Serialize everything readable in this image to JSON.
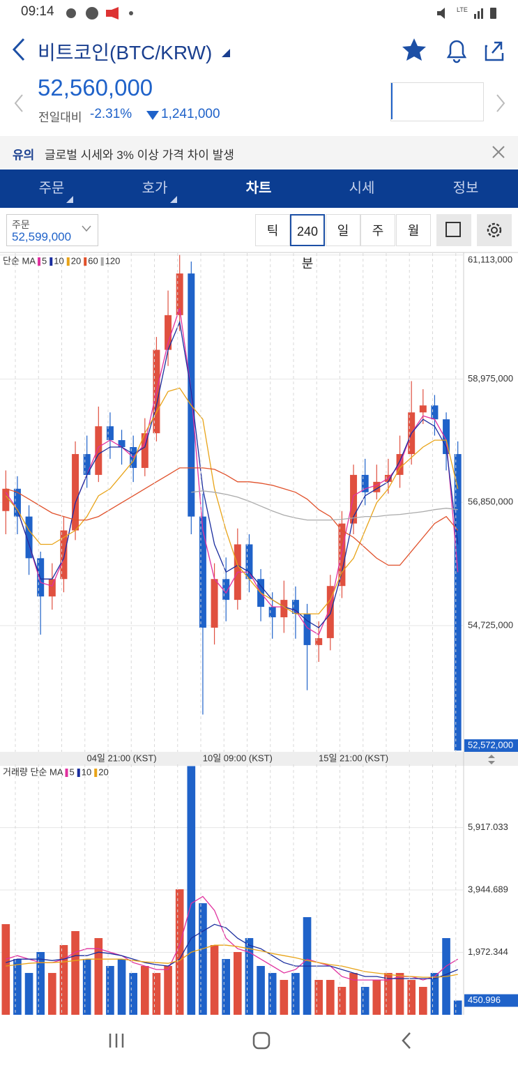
{
  "status_bar": {
    "time": "09:14"
  },
  "header": {
    "title": "비트코인(BTC/KRW)"
  },
  "price": {
    "current": "52,560,000",
    "change_label": "전일대비",
    "change_pct": "-2.31%",
    "change_abs": "1,241,000"
  },
  "notice": {
    "tag": "유의",
    "text": "글로벌 시세와 3% 이상 가격 차이 발생"
  },
  "tabs": [
    "주문",
    "호가",
    "차트",
    "시세",
    "정보"
  ],
  "active_tab": 2,
  "toolbar": {
    "order_label": "주문",
    "order_price": "52,599,000",
    "periods": [
      "틱",
      "240분",
      "일",
      "주",
      "월"
    ],
    "active_period": 1
  },
  "chart_data": [
    {
      "type": "candlestick",
      "legend_title": "단순 MA",
      "up_color": "#e0503f",
      "down_color": "#1f62c9",
      "categories": [
        null,
        null,
        null,
        null,
        null,
        null,
        null,
        null,
        null,
        null,
        "04일 21:00 (KST)",
        null,
        null,
        null,
        null,
        null,
        null,
        null,
        null,
        null,
        "10일 09:00 (KST)",
        null,
        null,
        null,
        null,
        null,
        null,
        null,
        null,
        null,
        "15일 21:00 (KST)",
        null,
        null,
        null,
        null,
        null,
        null,
        null,
        null,
        null
      ],
      "open": [
        56700000,
        57084000,
        56605000,
        55887000,
        55228000,
        55528000,
        56366000,
        57682000,
        57323000,
        58161000,
        57922000,
        57802000,
        57443000,
        58041000,
        59478000,
        60076000,
        60794000,
        56605000,
        54690000,
        55528000,
        55169000,
        56126000,
        55528000,
        55049000,
        54869000,
        55169000,
        54929000,
        54390000,
        54510000,
        55408000,
        56485000,
        57323000,
        57024000,
        57203000,
        57323000,
        57682000,
        58400000,
        58520000,
        58281000,
        57682000
      ],
      "high": [
        57400000,
        57300000,
        56800000,
        56000000,
        55800000,
        56600000,
        57900000,
        58000000,
        58500000,
        58400000,
        58100000,
        58000000,
        58300000,
        59700000,
        60500000,
        61113000,
        61000000,
        57000000,
        55800000,
        55900000,
        56400000,
        56300000,
        55700000,
        55300000,
        55500000,
        55400000,
        55100000,
        54800000,
        55600000,
        56700000,
        57500000,
        57600000,
        57500000,
        57600000,
        58000000,
        58939000,
        58800000,
        58700000,
        58400000,
        57900000
      ],
      "low": [
        56300000,
        56300000,
        55600000,
        54570000,
        55000000,
        55300000,
        56200000,
        57100000,
        57200000,
        57600000,
        57500000,
        57200000,
        57300000,
        57900000,
        59200000,
        59800000,
        56300000,
        53193000,
        54400000,
        54800000,
        55000000,
        55300000,
        54800000,
        54500000,
        54600000,
        54500000,
        53612000,
        54100000,
        54300000,
        55200000,
        56300000,
        56800000,
        56900000,
        57000000,
        57100000,
        57500000,
        58200000,
        58000000,
        57400000,
        52572000
      ],
      "close": [
        57084000,
        56605000,
        55887000,
        55228000,
        55528000,
        56366000,
        57682000,
        57323000,
        58161000,
        57922000,
        57802000,
        57443000,
        58041000,
        59478000,
        60076000,
        60794000,
        56605000,
        54690000,
        55528000,
        55169000,
        56126000,
        55528000,
        55049000,
        54869000,
        55169000,
        54929000,
        54390000,
        54510000,
        55408000,
        56485000,
        57323000,
        57024000,
        57203000,
        57323000,
        57682000,
        58400000,
        58520000,
        58281000,
        57682000,
        52572000
      ],
      "series": [
        {
          "name": "5",
          "color": "#e0309e",
          "values": [
            57024000,
            56725000,
            56126000,
            55468000,
            55408000,
            55887000,
            56845000,
            57323000,
            57802000,
            57922000,
            57802000,
            57623000,
            57862000,
            58760000,
            59598000,
            60196000,
            58760000,
            56366000,
            55528000,
            55288000,
            55648000,
            55648000,
            55288000,
            55049000,
            55049000,
            54989000,
            54690000,
            54570000,
            55049000,
            56007000,
            56964000,
            57084000,
            57144000,
            57264000,
            57503000,
            58042000,
            58341000,
            58281000,
            57922000,
            55648000
          ]
        },
        {
          "name": "10",
          "color": "#1a2d9e",
          "values": [
            56964000,
            56725000,
            56126000,
            55528000,
            55528000,
            55887000,
            56845000,
            57323000,
            57682000,
            57802000,
            57802000,
            57682000,
            57802000,
            58520000,
            59478000,
            59957000,
            58760000,
            57084000,
            56126000,
            55648000,
            55767000,
            55648000,
            55408000,
            55169000,
            55049000,
            54989000,
            54810000,
            54690000,
            54929000,
            55648000,
            56605000,
            56964000,
            57084000,
            57204000,
            57563000,
            58042000,
            58281000,
            58161000,
            57802000,
            56126000
          ]
        },
        {
          "name": "20",
          "color": "#e8a317",
          "values": [
            56964000,
            56725000,
            56366000,
            56126000,
            56126000,
            56246000,
            56366000,
            56605000,
            56964000,
            57084000,
            57323000,
            57563000,
            58042000,
            58401000,
            58760000,
            58820000,
            58520000,
            58281000,
            57084000,
            56366000,
            55767000,
            55528000,
            55288000,
            55169000,
            55049000,
            54929000,
            54929000,
            54929000,
            55169000,
            55648000,
            55887000,
            56366000,
            56845000,
            57084000,
            57443000,
            57623000,
            57802000,
            57922000,
            57922000,
            57084000
          ]
        },
        {
          "name": "60",
          "color": "#e0502a",
          "values": [
            57084000,
            57024000,
            56905000,
            56785000,
            56665000,
            56605000,
            56545000,
            56545000,
            56605000,
            56725000,
            56845000,
            56964000,
            57084000,
            57204000,
            57323000,
            57443000,
            57443000,
            57443000,
            57419000,
            57323000,
            57204000,
            57204000,
            57180000,
            57144000,
            57084000,
            57024000,
            56905000,
            56725000,
            56605000,
            56366000,
            56246000,
            56067000,
            55887000,
            55767000,
            55767000,
            56007000,
            56246000,
            56485000,
            56605000,
            56366000
          ]
        },
        {
          "name": "120",
          "color": "#aaaaaa",
          "values": [
            null,
            null,
            null,
            null,
            null,
            null,
            null,
            null,
            null,
            null,
            null,
            null,
            null,
            null,
            null,
            null,
            57024000,
            57048000,
            57024000,
            56988000,
            56940000,
            56869000,
            56785000,
            56701000,
            56629000,
            56581000,
            56545000,
            56545000,
            56545000,
            56557000,
            56581000,
            56605000,
            56605000,
            56629000,
            56641000,
            56665000,
            56689000,
            56725000,
            56749000,
            56725000
          ]
        }
      ],
      "ylim": [
        52550000,
        61120000
      ],
      "yticks": [
        {
          "value": 54725000,
          "label": "54,725,000"
        },
        {
          "value": 56850000,
          "label": "56,850,000"
        },
        {
          "value": 58975000,
          "label": "58,975,000"
        },
        {
          "value": 61113000,
          "label": "61,113,000"
        }
      ],
      "last_label": "52,572,000",
      "grid": true
    },
    {
      "type": "bar",
      "legend_title": "거래량 단순 MA",
      "values": [
        2865,
        1763,
        1322,
        1984,
        1322,
        2204,
        2645,
        1763,
        2424,
        1543,
        1763,
        1322,
        1543,
        1322,
        1543,
        3967,
        7860,
        3526,
        2204,
        1763,
        1984,
        2424,
        1543,
        1322,
        1102,
        1322,
        3086,
        1102,
        1102,
        882,
        1322,
        882,
        1102,
        1322,
        1322,
        1102,
        882,
        1322,
        2424,
        450.996
      ],
      "series": [
        {
          "name": "5",
          "color": "#e0309e",
          "values": [
            1760,
            1870,
            1760,
            1650,
            1650,
            1760,
            1980,
            2090,
            2090,
            1980,
            1870,
            1650,
            1540,
            1430,
            1430,
            2200,
            3520,
            3740,
            3300,
            2420,
            2090,
            1980,
            1760,
            1540,
            1320,
            1430,
            1760,
            1650,
            1540,
            1210,
            1100,
            1100,
            1100,
            1100,
            1210,
            1210,
            1100,
            1210,
            1540,
            1760
          ]
        },
        {
          "name": "10",
          "color": "#1a2d9e",
          "values": [
            1650,
            1760,
            1760,
            1760,
            1716,
            1760,
            1870,
            1870,
            1980,
            1936,
            1870,
            1760,
            1650,
            1584,
            1540,
            1760,
            2420,
            2640,
            2860,
            2750,
            2420,
            2200,
            2090,
            1870,
            1650,
            1540,
            1540,
            1540,
            1540,
            1430,
            1320,
            1210,
            1210,
            1144,
            1144,
            1144,
            1144,
            1144,
            1276,
            1430
          ]
        },
        {
          "name": "20",
          "color": "#e8a317",
          "values": [
            1540,
            1584,
            1628,
            1650,
            1650,
            1672,
            1716,
            1760,
            1760,
            1760,
            1760,
            1716,
            1672,
            1650,
            1628,
            1716,
            1980,
            2090,
            2200,
            2200,
            2156,
            2090,
            2024,
            1936,
            1870,
            1804,
            1716,
            1650,
            1584,
            1540,
            1452,
            1364,
            1320,
            1276,
            1232,
            1210,
            1188,
            1188,
            1210,
            1276
          ]
        }
      ],
      "ylim": [
        0,
        7870
      ],
      "yticks": [
        {
          "value": 1972.344,
          "label": "1,972.344"
        },
        {
          "value": 3944.689,
          "label": "3,944.689"
        },
        {
          "value": 5917.033,
          "label": "5,917.033"
        }
      ],
      "last_label": "450.996",
      "grid": true
    }
  ]
}
